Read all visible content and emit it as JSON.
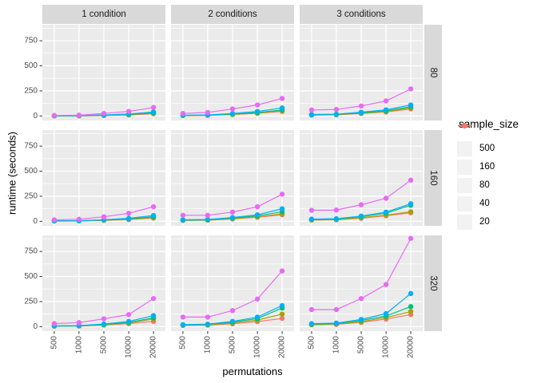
{
  "chart_data": {
    "type": "line",
    "title": "",
    "xlabel": "permutations",
    "ylabel": "runtime (seconds)",
    "x_tick_labels": [
      "500",
      "1000",
      "5000",
      "10000",
      "20000"
    ],
    "y_tick_values": [
      0,
      250,
      500,
      750
    ],
    "y_tick_labels": [
      "0",
      "250",
      "500",
      "750"
    ],
    "ylim": [
      -45,
      910
    ],
    "grid": "white major and minor gridlines on grey panel",
    "legend_position": "right",
    "col_facets": [
      "1 condition",
      "2 conditions",
      "3 conditions"
    ],
    "row_facets": [
      "80",
      "160",
      "320"
    ],
    "theme": {
      "panel_bg": "#EBEBEB",
      "strip_bg": "#D9D9D9",
      "grid_color": "#FFFFFF",
      "tick_color": "#333333",
      "tick_label_color": "#4D4D4D",
      "legend_key_bg": "#F2F2F2"
    },
    "legend": {
      "title": "sample_size",
      "entries": [
        {
          "label": "500",
          "color": "#E76BF3"
        },
        {
          "label": "160",
          "color": "#00B0F6"
        },
        {
          "label": "80",
          "color": "#00BF7D"
        },
        {
          "label": "40",
          "color": "#A3A500"
        },
        {
          "label": "20",
          "color": "#F8766D"
        }
      ]
    },
    "facets": [
      {
        "row": "80",
        "col": "1 condition",
        "series": [
          {
            "name": "500",
            "values": [
              5,
              8,
              25,
              45,
              85
            ]
          },
          {
            "name": "160",
            "values": [
              2,
              3,
              10,
              20,
              40
            ]
          },
          {
            "name": "80",
            "values": [
              2,
              3,
              8,
              15,
              32
            ]
          },
          {
            "name": "40",
            "values": [
              1,
              2,
              6,
              12,
              28
            ]
          },
          {
            "name": "20",
            "values": [
              1,
              2,
              5,
              10,
              22
            ]
          }
        ]
      },
      {
        "row": "80",
        "col": "2 conditions",
        "series": [
          {
            "name": "500",
            "values": [
              25,
              35,
              70,
              110,
              175
            ]
          },
          {
            "name": "160",
            "values": [
              8,
              10,
              25,
              45,
              80
            ]
          },
          {
            "name": "80",
            "values": [
              6,
              8,
              20,
              35,
              60
            ]
          },
          {
            "name": "40",
            "values": [
              5,
              7,
              16,
              30,
              52
            ]
          },
          {
            "name": "20",
            "values": [
              4,
              6,
              14,
              26,
              45
            ]
          }
        ]
      },
      {
        "row": "80",
        "col": "3 conditions",
        "series": [
          {
            "name": "500",
            "values": [
              60,
              65,
              100,
              150,
              270
            ]
          },
          {
            "name": "160",
            "values": [
              15,
              18,
              38,
              62,
              110
            ]
          },
          {
            "name": "80",
            "values": [
              12,
              15,
              32,
              52,
              92
            ]
          },
          {
            "name": "40",
            "values": [
              10,
              13,
              27,
              45,
              80
            ]
          },
          {
            "name": "20",
            "values": [
              9,
              12,
              24,
              40,
              70
            ]
          }
        ]
      },
      {
        "row": "160",
        "col": "1 condition",
        "series": [
          {
            "name": "500",
            "values": [
              15,
              20,
              45,
              80,
              145
            ]
          },
          {
            "name": "160",
            "values": [
              5,
              6,
              16,
              30,
              58
            ]
          },
          {
            "name": "80",
            "values": [
              4,
              5,
              13,
              25,
              45
            ]
          },
          {
            "name": "40",
            "values": [
              3,
              4,
              11,
              20,
              38
            ]
          },
          {
            "name": "20",
            "values": [
              3,
              4,
              9,
              17,
              32
            ]
          }
        ]
      },
      {
        "row": "160",
        "col": "2 conditions",
        "series": [
          {
            "name": "500",
            "values": [
              60,
              60,
              92,
              145,
              270
            ]
          },
          {
            "name": "160",
            "values": [
              15,
              18,
              38,
              65,
              125
            ]
          },
          {
            "name": "80",
            "values": [
              12,
              15,
              32,
              55,
              95
            ]
          },
          {
            "name": "40",
            "values": [
              10,
              12,
              26,
              45,
              75
            ]
          },
          {
            "name": "20",
            "values": [
              9,
              11,
              23,
              40,
              65
            ]
          }
        ]
      },
      {
        "row": "160",
        "col": "3 conditions",
        "series": [
          {
            "name": "500",
            "values": [
              110,
              112,
              165,
              230,
              410
            ]
          },
          {
            "name": "160",
            "values": [
              22,
              26,
              52,
              92,
              175
            ]
          },
          {
            "name": "80",
            "values": [
              18,
              22,
              46,
              82,
              160
            ]
          },
          {
            "name": "40",
            "values": [
              14,
              17,
              36,
              62,
              95
            ]
          },
          {
            "name": "20",
            "values": [
              12,
              15,
              30,
              55,
              85
            ]
          }
        ]
      },
      {
        "row": "320",
        "col": "1 condition",
        "series": [
          {
            "name": "500",
            "values": [
              30,
              40,
              78,
              120,
              280
            ]
          },
          {
            "name": "160",
            "values": [
              8,
              10,
              26,
              52,
              110
            ]
          },
          {
            "name": "80",
            "values": [
              6,
              8,
              21,
              42,
              88
            ]
          },
          {
            "name": "40",
            "values": [
              5,
              7,
              18,
              36,
              76
            ]
          },
          {
            "name": "20",
            "values": [
              5,
              6,
              15,
              30,
              52
            ]
          }
        ]
      },
      {
        "row": "320",
        "col": "2 conditions",
        "series": [
          {
            "name": "500",
            "values": [
              95,
              95,
              160,
              275,
              555
            ]
          },
          {
            "name": "160",
            "values": [
              20,
              25,
              52,
              95,
              210
            ]
          },
          {
            "name": "80",
            "values": [
              17,
              21,
              45,
              80,
              185
            ]
          },
          {
            "name": "40",
            "values": [
              14,
              17,
              36,
              65,
              125
            ]
          },
          {
            "name": "20",
            "values": [
              12,
              15,
              28,
              50,
              82
            ]
          }
        ]
      },
      {
        "row": "320",
        "col": "3 conditions",
        "series": [
          {
            "name": "500",
            "values": [
              170,
              170,
              280,
              420,
              880
            ]
          },
          {
            "name": "160",
            "values": [
              30,
              35,
              72,
              130,
              330
            ]
          },
          {
            "name": "80",
            "values": [
              25,
              30,
              62,
              105,
              200
            ]
          },
          {
            "name": "40",
            "values": [
              20,
              25,
              50,
              90,
              150
            ]
          },
          {
            "name": "20",
            "values": [
              18,
              22,
              42,
              75,
              120
            ]
          }
        ]
      }
    ]
  }
}
